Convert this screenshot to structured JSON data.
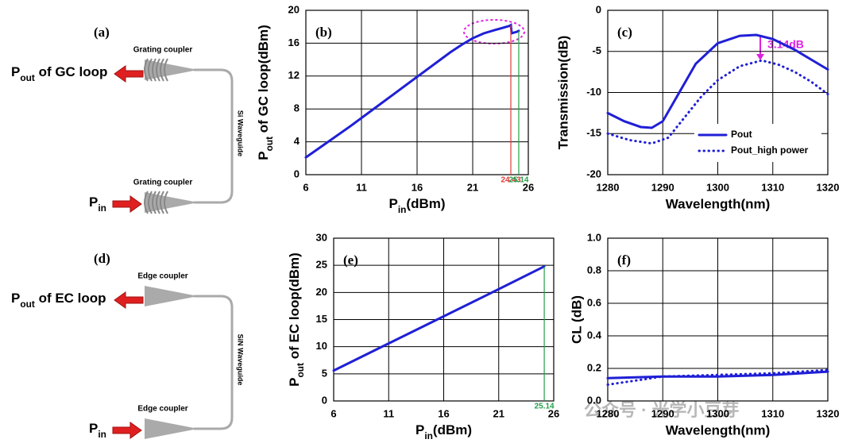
{
  "diagrams": [
    {
      "panel_label": "(a)",
      "output_label": [
        "P",
        "out",
        " of GC loop"
      ],
      "top_coupler": "Grating coupler",
      "bottom_coupler": "Grating coupler",
      "waveguide": "Si Waveguide",
      "input_label": [
        "P",
        "in"
      ],
      "coupler_type": "grating"
    },
    {
      "panel_label": "(d)",
      "output_label": [
        "P",
        "out",
        " of EC loop"
      ],
      "top_coupler": "Edge coupler",
      "bottom_coupler": "Edge coupler",
      "waveguide": "SiN Waveguide",
      "input_label": [
        "P",
        "in"
      ],
      "coupler_type": "edge"
    }
  ],
  "chart_data": [
    {
      "type": "line",
      "panel_label": "(b)",
      "xlabel": [
        "P",
        "in",
        "(dBm)"
      ],
      "ylabel": [
        "P",
        "out",
        " of GC loop(dBm)"
      ],
      "xlim": [
        6,
        26
      ],
      "xticks": [
        6,
        11,
        16,
        21,
        26
      ],
      "ylim": [
        0,
        20
      ],
      "yticks": [
        0,
        4,
        8,
        12,
        16,
        20
      ],
      "grid": true,
      "series": [
        {
          "color": "#1f1fd6",
          "dash": "solid",
          "x": [
            6,
            8,
            10,
            12,
            14,
            16,
            18,
            19,
            20,
            21,
            22,
            23,
            24.3,
            24.43,
            24.5,
            25,
            25.14
          ],
          "values": [
            2.1,
            4,
            5.9,
            7.9,
            9.9,
            11.9,
            13.9,
            14.9,
            15.8,
            16.6,
            17.2,
            17.6,
            18.1,
            18.2,
            17.2,
            17.4,
            17.5
          ]
        }
      ],
      "vlines": [
        {
          "x": 24.43,
          "label": "24.43",
          "color": "#e03a3a"
        },
        {
          "x": 25.14,
          "label": "25.14",
          "color": "#22a04a"
        }
      ]
    },
    {
      "type": "line",
      "panel_label": "(c)",
      "xlabel": "Wavelength(nm)",
      "ylabel": "Transmission(dB)",
      "xlim": [
        1280,
        1320
      ],
      "xticks": [
        1280,
        1290,
        1300,
        1310,
        1320
      ],
      "ylim": [
        -20,
        0
      ],
      "yticks": [
        -20,
        -15,
        -10,
        -5,
        0
      ],
      "grid": true,
      "series": [
        {
          "name": "Pout",
          "color": "#1f1fd6",
          "dash": "solid",
          "x": [
            1280,
            1283,
            1286,
            1288,
            1290,
            1293,
            1296,
            1300,
            1304,
            1307,
            1310,
            1314,
            1317,
            1320
          ],
          "values": [
            -12.5,
            -13.5,
            -14.2,
            -14.3,
            -13.5,
            -10,
            -6.5,
            -4,
            -3.1,
            -3,
            -3.5,
            -4.8,
            -6,
            -7.2
          ]
        },
        {
          "name": "Pout_high power",
          "color": "#1f1fd6",
          "dash": "dotted",
          "x": [
            1280,
            1284,
            1288,
            1291,
            1294,
            1297,
            1300,
            1304,
            1308,
            1311,
            1314,
            1317,
            1320
          ],
          "values": [
            -15,
            -15.8,
            -16.2,
            -15.5,
            -13,
            -10.5,
            -8.5,
            -6.8,
            -6.1,
            -6.6,
            -7.5,
            -8.7,
            -10.2
          ]
        }
      ],
      "legend": "lower right",
      "annotation": "3.14dB"
    },
    {
      "type": "line",
      "panel_label": "(e)",
      "xlabel": [
        "P",
        "in",
        "(dBm)"
      ],
      "ylabel": [
        "P",
        "out",
        " of EC loop(dBm)"
      ],
      "xlim": [
        6,
        26
      ],
      "xticks": [
        6,
        11,
        16,
        21,
        26
      ],
      "ylim": [
        0,
        30
      ],
      "yticks": [
        0,
        5,
        10,
        15,
        20,
        25,
        30
      ],
      "grid": true,
      "series": [
        {
          "color": "#1f1fd6",
          "dash": "solid",
          "x": [
            6,
            10,
            15,
            20,
            25.14
          ],
          "values": [
            5.6,
            9.6,
            14.6,
            19.6,
            24.8
          ]
        }
      ],
      "vlines": [
        {
          "x": 25.14,
          "label": "25.14",
          "color": "#22a04a"
        }
      ]
    },
    {
      "type": "line",
      "panel_label": "(f)",
      "xlabel": "Wavelength(nm)",
      "ylabel": "CL (dB)",
      "xlim": [
        1280,
        1320
      ],
      "xticks": [
        1280,
        1290,
        1300,
        1310,
        1320
      ],
      "ylim": [
        0,
        1
      ],
      "yticks": [
        {
          "value": 0,
          "label": "0.0"
        },
        0.2,
        0.4,
        0.6,
        0.8,
        {
          "value": 1,
          "label": "1.0"
        }
      ],
      "grid": true,
      "series": [
        {
          "color": "#1f1fd6",
          "dash": "solid",
          "x": [
            1280,
            1290,
            1300,
            1310,
            1320
          ],
          "values": [
            0.14,
            0.15,
            0.15,
            0.16,
            0.18
          ]
        },
        {
          "color": "#1f1fd6",
          "dash": "dotted",
          "x": [
            1280,
            1290,
            1300,
            1310,
            1320
          ],
          "values": [
            0.1,
            0.15,
            0.16,
            0.17,
            0.19
          ]
        }
      ]
    }
  ],
  "watermark": "公众号 · 光学小豆芽"
}
